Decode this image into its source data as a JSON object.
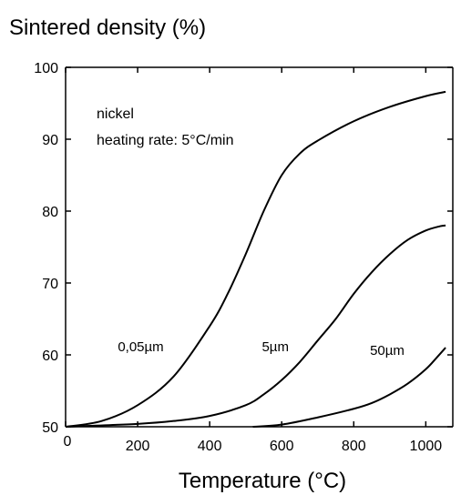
{
  "chart_data": {
    "type": "line",
    "title": "Sintered density (%)",
    "xlabel": "Temperature (°C)",
    "ylabel": "",
    "xlim": [
      0,
      1075
    ],
    "ylim": [
      50,
      100
    ],
    "x_ticks": [
      0,
      200,
      400,
      600,
      800,
      1000
    ],
    "x_tick_labels": [
      "0",
      "200",
      "400",
      "600",
      "800",
      "1000"
    ],
    "y_ticks": [
      50,
      60,
      70,
      80,
      90,
      100
    ],
    "y_tick_labels": [
      "50",
      "60",
      "70",
      "80",
      "90",
      "100"
    ],
    "grid": false,
    "annotations": [
      "nickel",
      "heating rate: 5°C/min"
    ],
    "series": [
      {
        "name": "0,05µm",
        "x": [
          0,
          100,
          200,
          300,
          400,
          450,
          500,
          550,
          600,
          650,
          700,
          800,
          900,
          1000,
          1055
        ],
        "y": [
          50,
          50.8,
          53,
          57,
          64,
          68.5,
          74,
          80,
          85,
          88,
          89.8,
          92.5,
          94.5,
          96,
          96.6
        ]
      },
      {
        "name": "5µm",
        "x": [
          0,
          200,
          300,
          400,
          500,
          550,
          600,
          650,
          700,
          750,
          800,
          850,
          900,
          950,
          1000,
          1040,
          1055
        ],
        "y": [
          50,
          50.4,
          50.8,
          51.5,
          53,
          54.5,
          56.5,
          59,
          62,
          65,
          68.5,
          71.5,
          74,
          76,
          77.3,
          77.9,
          78
        ]
      },
      {
        "name": "50µm",
        "x": [
          520,
          600,
          700,
          800,
          850,
          900,
          950,
          1000,
          1030,
          1055
        ],
        "y": [
          50,
          50.3,
          51.3,
          52.5,
          53.3,
          54.5,
          56,
          58,
          59.6,
          61
        ]
      }
    ],
    "series_labels": [
      {
        "text": "0,05µm",
        "x": 145,
        "y": 60.5
      },
      {
        "text": "5µm",
        "x": 545,
        "y": 60.5
      },
      {
        "text": "50µm",
        "x": 845,
        "y": 60
      }
    ]
  }
}
